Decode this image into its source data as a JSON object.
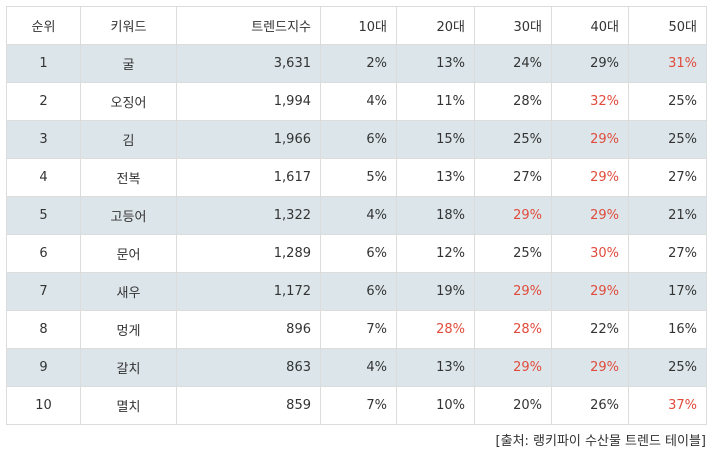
{
  "table": {
    "columns": [
      "순위",
      "키워드",
      "트렌드지수",
      "10대",
      "20대",
      "30대",
      "40대",
      "50대"
    ],
    "highlight_color": "#e04b3c",
    "row_shade_color": "#dce6ea",
    "rows": [
      {
        "rank": "1",
        "keyword": "굴",
        "index": "3,631",
        "v10": "2%",
        "v20": "13%",
        "v30": "24%",
        "v40": "29%",
        "v50": "31%",
        "hl": [
          "v50"
        ]
      },
      {
        "rank": "2",
        "keyword": "오징어",
        "index": "1,994",
        "v10": "4%",
        "v20": "11%",
        "v30": "28%",
        "v40": "32%",
        "v50": "25%",
        "hl": [
          "v40"
        ]
      },
      {
        "rank": "3",
        "keyword": "김",
        "index": "1,966",
        "v10": "6%",
        "v20": "15%",
        "v30": "25%",
        "v40": "29%",
        "v50": "25%",
        "hl": [
          "v40"
        ]
      },
      {
        "rank": "4",
        "keyword": "전복",
        "index": "1,617",
        "v10": "5%",
        "v20": "13%",
        "v30": "27%",
        "v40": "29%",
        "v50": "27%",
        "hl": [
          "v40"
        ]
      },
      {
        "rank": "5",
        "keyword": "고등어",
        "index": "1,322",
        "v10": "4%",
        "v20": "18%",
        "v30": "29%",
        "v40": "29%",
        "v50": "21%",
        "hl": [
          "v30",
          "v40"
        ]
      },
      {
        "rank": "6",
        "keyword": "문어",
        "index": "1,289",
        "v10": "6%",
        "v20": "12%",
        "v30": "25%",
        "v40": "30%",
        "v50": "27%",
        "hl": [
          "v40"
        ]
      },
      {
        "rank": "7",
        "keyword": "새우",
        "index": "1,172",
        "v10": "6%",
        "v20": "19%",
        "v30": "29%",
        "v40": "29%",
        "v50": "17%",
        "hl": [
          "v30",
          "v40"
        ]
      },
      {
        "rank": "8",
        "keyword": "멍게",
        "index": "896",
        "v10": "7%",
        "v20": "28%",
        "v30": "28%",
        "v40": "22%",
        "v50": "16%",
        "hl": [
          "v20",
          "v30"
        ]
      },
      {
        "rank": "9",
        "keyword": "갈치",
        "index": "863",
        "v10": "4%",
        "v20": "13%",
        "v30": "29%",
        "v40": "29%",
        "v50": "25%",
        "hl": [
          "v30",
          "v40"
        ]
      },
      {
        "rank": "10",
        "keyword": "멸치",
        "index": "859",
        "v10": "7%",
        "v20": "10%",
        "v30": "20%",
        "v40": "26%",
        "v50": "37%",
        "hl": [
          "v50"
        ]
      }
    ]
  },
  "source": "[출처: 랭키파이 수산물 트렌드 테이블]"
}
